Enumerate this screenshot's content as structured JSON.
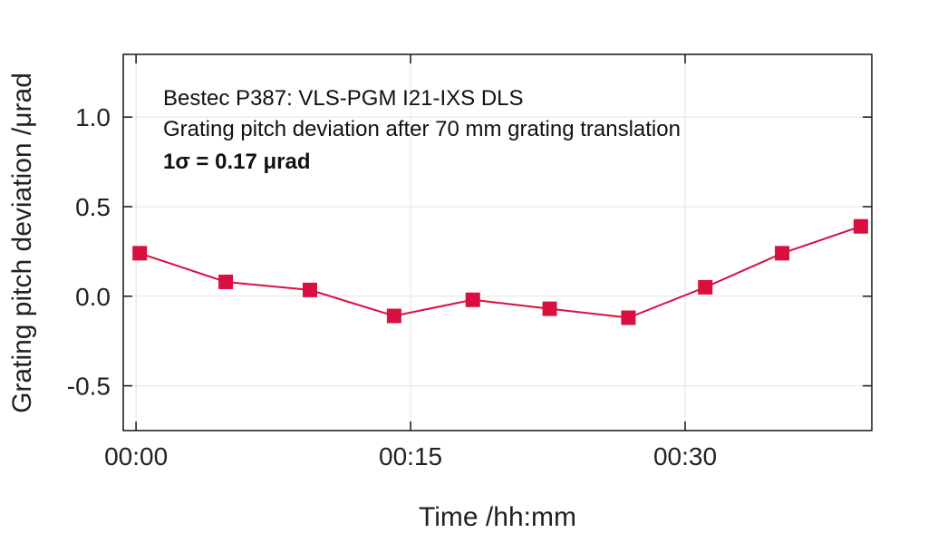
{
  "chart_data": {
    "type": "line",
    "xlabel": "Time /hh:mm",
    "ylabel": "Grating pitch deviation /μrad",
    "x_ticks": [
      "00:00",
      "00:15",
      "00:30"
    ],
    "x_tick_minutes": [
      0,
      15,
      30
    ],
    "y_ticks": [
      "1.0",
      "0.5",
      "0.0",
      "-0.5"
    ],
    "y_tick_values": [
      1.0,
      0.5,
      0.0,
      -0.5
    ],
    "xlim_minutes": [
      -0.7,
      40.2
    ],
    "ylim": [
      -0.75,
      1.35
    ],
    "grid": true,
    "annotations": [
      "Bestec P387: VLS-PGM I21-IXS DLS",
      "Grating pitch deviation after 70 mm grating translation",
      "1σ = 0.17 μrad"
    ],
    "series": [
      {
        "color": "#d90f3f",
        "marker": "square",
        "x_minutes": [
          0.2,
          4.9,
          9.5,
          14.1,
          18.4,
          22.6,
          26.9,
          31.1,
          35.3,
          39.6
        ],
        "y": [
          0.24,
          0.08,
          0.035,
          -0.11,
          -0.02,
          -0.07,
          -0.12,
          0.05,
          0.24,
          0.39
        ]
      }
    ]
  }
}
